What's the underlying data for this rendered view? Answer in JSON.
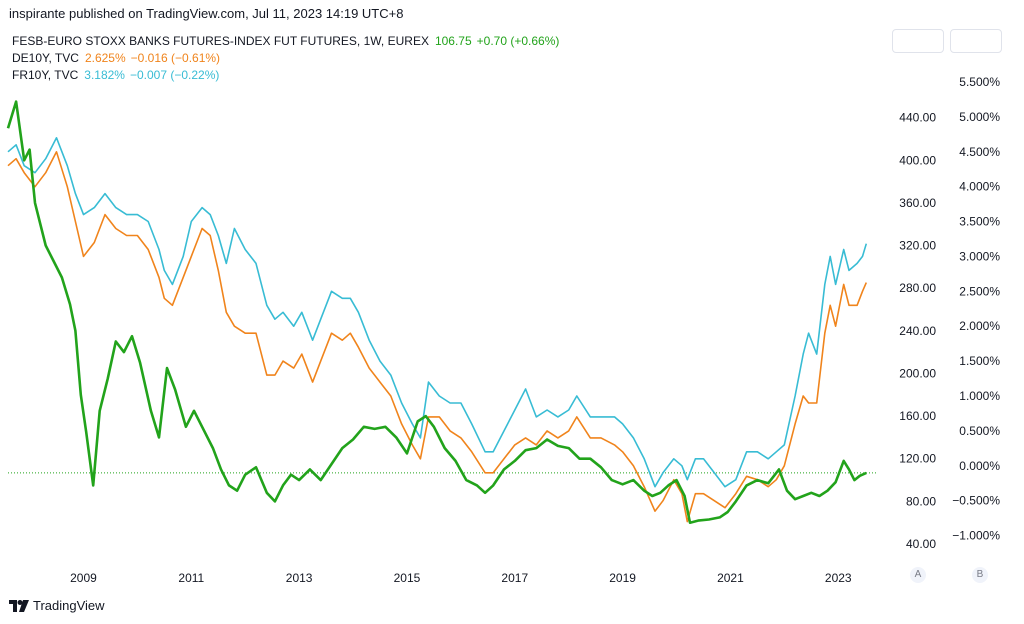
{
  "header": {
    "published_text": "inspirante published on TradingView.com, Jul 11, 2023 14:19 UTC+8"
  },
  "legend": [
    {
      "symbol": "FESB-EURO STOXX BANKS FUTURES-INDEX FUT FUTURES, 1W, EUREX",
      "price": "106.75",
      "change": "+0.70 (+0.66%)",
      "color": "#22a31b"
    },
    {
      "symbol": "DE10Y, TVC",
      "price": "2.625%",
      "change": "−0.016 (−0.61%)",
      "color": "#f0841c"
    },
    {
      "symbol": "FR10Y, TVC",
      "price": "3.182%",
      "change": "−0.007 (−0.22%)",
      "color": "#38bcd4"
    }
  ],
  "footer": {
    "brand": "TradingView"
  },
  "scale_buttons": {
    "a": "A",
    "b": "B"
  },
  "chart_data": {
    "type": "line",
    "x_labels": [
      "2009",
      "2011",
      "2013",
      "2015",
      "2017",
      "2019",
      "2021",
      "2023"
    ],
    "x_range": [
      2007.6,
      2023.7
    ],
    "y_left": {
      "ticks": [
        "440.00",
        "400.00",
        "360.00",
        "320.00",
        "280.00",
        "240.00",
        "200.00",
        "160.00",
        "120.00",
        "80.00",
        "40.00"
      ],
      "range": [
        25,
        480
      ]
    },
    "y_right": {
      "ticks": [
        "5.000%",
        "4.500%",
        "4.000%",
        "3.500%",
        "3.000%",
        "2.500%",
        "2.000%",
        "1.500%",
        "1.000%",
        "0.500%",
        "0.000%",
        "−0.500%",
        "−1.000%"
      ],
      "partial_top": "5.500%",
      "range": [
        -1.35,
        5.6
      ]
    },
    "reference_line": {
      "value": 106.75,
      "axis": "left",
      "color": "#22a31b"
    },
    "grid": false,
    "series": [
      {
        "name": "FESB-EURO STOXX BANKS FUTURES-INDEX FUT FUTURES, 1W, EUREX",
        "axis": "left",
        "color": "#22a31b",
        "points": [
          [
            2007.6,
            430
          ],
          [
            2007.75,
            455
          ],
          [
            2007.9,
            400
          ],
          [
            2008.0,
            410
          ],
          [
            2008.1,
            360
          ],
          [
            2008.3,
            320
          ],
          [
            2008.45,
            305
          ],
          [
            2008.6,
            290
          ],
          [
            2008.75,
            265
          ],
          [
            2008.85,
            240
          ],
          [
            2008.95,
            180
          ],
          [
            2009.05,
            145
          ],
          [
            2009.18,
            95
          ],
          [
            2009.3,
            165
          ],
          [
            2009.45,
            195
          ],
          [
            2009.6,
            230
          ],
          [
            2009.75,
            220
          ],
          [
            2009.9,
            235
          ],
          [
            2010.05,
            210
          ],
          [
            2010.25,
            165
          ],
          [
            2010.4,
            140
          ],
          [
            2010.55,
            205
          ],
          [
            2010.7,
            185
          ],
          [
            2010.9,
            150
          ],
          [
            2011.05,
            165
          ],
          [
            2011.2,
            150
          ],
          [
            2011.4,
            130
          ],
          [
            2011.55,
            110
          ],
          [
            2011.7,
            95
          ],
          [
            2011.85,
            90
          ],
          [
            2012.0,
            105
          ],
          [
            2012.2,
            112
          ],
          [
            2012.4,
            88
          ],
          [
            2012.55,
            80
          ],
          [
            2012.7,
            95
          ],
          [
            2012.85,
            105
          ],
          [
            2013.0,
            100
          ],
          [
            2013.2,
            110
          ],
          [
            2013.4,
            100
          ],
          [
            2013.6,
            115
          ],
          [
            2013.8,
            130
          ],
          [
            2014.0,
            138
          ],
          [
            2014.2,
            150
          ],
          [
            2014.4,
            148
          ],
          [
            2014.6,
            150
          ],
          [
            2014.8,
            140
          ],
          [
            2015.0,
            125
          ],
          [
            2015.2,
            155
          ],
          [
            2015.35,
            160
          ],
          [
            2015.5,
            150
          ],
          [
            2015.7,
            130
          ],
          [
            2015.9,
            118
          ],
          [
            2016.1,
            100
          ],
          [
            2016.3,
            95
          ],
          [
            2016.45,
            88
          ],
          [
            2016.6,
            95
          ],
          [
            2016.8,
            110
          ],
          [
            2017.0,
            118
          ],
          [
            2017.2,
            128
          ],
          [
            2017.4,
            130
          ],
          [
            2017.6,
            138
          ],
          [
            2017.8,
            132
          ],
          [
            2018.0,
            130
          ],
          [
            2018.2,
            120
          ],
          [
            2018.4,
            120
          ],
          [
            2018.6,
            112
          ],
          [
            2018.8,
            100
          ],
          [
            2019.0,
            96
          ],
          [
            2019.2,
            100
          ],
          [
            2019.4,
            90
          ],
          [
            2019.55,
            85
          ],
          [
            2019.7,
            88
          ],
          [
            2019.85,
            95
          ],
          [
            2020.0,
            100
          ],
          [
            2020.15,
            85
          ],
          [
            2020.25,
            60
          ],
          [
            2020.4,
            62
          ],
          [
            2020.6,
            63
          ],
          [
            2020.8,
            65
          ],
          [
            2020.95,
            70
          ],
          [
            2021.1,
            80
          ],
          [
            2021.3,
            95
          ],
          [
            2021.5,
            100
          ],
          [
            2021.7,
            97
          ],
          [
            2021.9,
            110
          ],
          [
            2022.05,
            90
          ],
          [
            2022.2,
            82
          ],
          [
            2022.35,
            85
          ],
          [
            2022.5,
            88
          ],
          [
            2022.65,
            85
          ],
          [
            2022.8,
            90
          ],
          [
            2022.95,
            98
          ],
          [
            2023.1,
            118
          ],
          [
            2023.2,
            110
          ],
          [
            2023.3,
            100
          ],
          [
            2023.4,
            104
          ],
          [
            2023.52,
            106.75
          ]
        ]
      },
      {
        "name": "DE10Y, TVC",
        "axis": "right",
        "color": "#f0841c",
        "points": [
          [
            2007.6,
            4.3
          ],
          [
            2007.75,
            4.4
          ],
          [
            2007.9,
            4.2
          ],
          [
            2008.1,
            4.0
          ],
          [
            2008.3,
            4.2
          ],
          [
            2008.5,
            4.5
          ],
          [
            2008.7,
            4.0
          ],
          [
            2008.85,
            3.5
          ],
          [
            2009.0,
            3.0
          ],
          [
            2009.2,
            3.2
          ],
          [
            2009.4,
            3.6
          ],
          [
            2009.6,
            3.4
          ],
          [
            2009.8,
            3.3
          ],
          [
            2010.0,
            3.3
          ],
          [
            2010.2,
            3.1
          ],
          [
            2010.4,
            2.7
          ],
          [
            2010.5,
            2.4
          ],
          [
            2010.65,
            2.3
          ],
          [
            2010.85,
            2.7
          ],
          [
            2011.0,
            3.0
          ],
          [
            2011.2,
            3.4
          ],
          [
            2011.35,
            3.3
          ],
          [
            2011.5,
            2.8
          ],
          [
            2011.65,
            2.2
          ],
          [
            2011.8,
            2.0
          ],
          [
            2012.0,
            1.9
          ],
          [
            2012.2,
            1.9
          ],
          [
            2012.4,
            1.3
          ],
          [
            2012.55,
            1.3
          ],
          [
            2012.7,
            1.5
          ],
          [
            2012.9,
            1.4
          ],
          [
            2013.05,
            1.6
          ],
          [
            2013.25,
            1.2
          ],
          [
            2013.4,
            1.5
          ],
          [
            2013.6,
            1.9
          ],
          [
            2013.8,
            1.8
          ],
          [
            2013.95,
            1.9
          ],
          [
            2014.1,
            1.7
          ],
          [
            2014.3,
            1.4
          ],
          [
            2014.5,
            1.2
          ],
          [
            2014.7,
            1.0
          ],
          [
            2014.9,
            0.6
          ],
          [
            2015.1,
            0.3
          ],
          [
            2015.25,
            0.1
          ],
          [
            2015.4,
            0.7
          ],
          [
            2015.6,
            0.7
          ],
          [
            2015.8,
            0.5
          ],
          [
            2016.0,
            0.4
          ],
          [
            2016.2,
            0.2
          ],
          [
            2016.45,
            -0.1
          ],
          [
            2016.6,
            -0.1
          ],
          [
            2016.8,
            0.1
          ],
          [
            2017.0,
            0.3
          ],
          [
            2017.2,
            0.4
          ],
          [
            2017.4,
            0.3
          ],
          [
            2017.6,
            0.5
          ],
          [
            2017.8,
            0.4
          ],
          [
            2018.0,
            0.5
          ],
          [
            2018.15,
            0.7
          ],
          [
            2018.4,
            0.4
          ],
          [
            2018.6,
            0.4
          ],
          [
            2018.85,
            0.3
          ],
          [
            2019.0,
            0.2
          ],
          [
            2019.2,
            0.0
          ],
          [
            2019.4,
            -0.3
          ],
          [
            2019.6,
            -0.65
          ],
          [
            2019.75,
            -0.5
          ],
          [
            2019.95,
            -0.2
          ],
          [
            2020.1,
            -0.4
          ],
          [
            2020.2,
            -0.8
          ],
          [
            2020.35,
            -0.4
          ],
          [
            2020.5,
            -0.4
          ],
          [
            2020.7,
            -0.5
          ],
          [
            2020.9,
            -0.6
          ],
          [
            2021.1,
            -0.4
          ],
          [
            2021.3,
            -0.15
          ],
          [
            2021.5,
            -0.2
          ],
          [
            2021.7,
            -0.3
          ],
          [
            2021.85,
            -0.2
          ],
          [
            2022.0,
            0.0
          ],
          [
            2022.2,
            0.6
          ],
          [
            2022.35,
            1.0
          ],
          [
            2022.45,
            0.9
          ],
          [
            2022.6,
            0.9
          ],
          [
            2022.75,
            1.9
          ],
          [
            2022.85,
            2.3
          ],
          [
            2022.95,
            2.0
          ],
          [
            2023.1,
            2.6
          ],
          [
            2023.2,
            2.3
          ],
          [
            2023.35,
            2.3
          ],
          [
            2023.45,
            2.5
          ],
          [
            2023.52,
            2.625
          ]
        ]
      },
      {
        "name": "FR10Y, TVC",
        "axis": "right",
        "color": "#38bcd4",
        "points": [
          [
            2007.6,
            4.5
          ],
          [
            2007.75,
            4.6
          ],
          [
            2007.9,
            4.3
          ],
          [
            2008.1,
            4.2
          ],
          [
            2008.3,
            4.4
          ],
          [
            2008.5,
            4.7
          ],
          [
            2008.7,
            4.3
          ],
          [
            2008.85,
            3.9
          ],
          [
            2009.0,
            3.6
          ],
          [
            2009.2,
            3.7
          ],
          [
            2009.4,
            3.9
          ],
          [
            2009.6,
            3.7
          ],
          [
            2009.8,
            3.6
          ],
          [
            2010.0,
            3.6
          ],
          [
            2010.2,
            3.5
          ],
          [
            2010.4,
            3.1
          ],
          [
            2010.5,
            2.8
          ],
          [
            2010.65,
            2.6
          ],
          [
            2010.85,
            3.0
          ],
          [
            2011.0,
            3.5
          ],
          [
            2011.2,
            3.7
          ],
          [
            2011.35,
            3.6
          ],
          [
            2011.5,
            3.3
          ],
          [
            2011.65,
            2.9
          ],
          [
            2011.8,
            3.4
          ],
          [
            2012.0,
            3.1
          ],
          [
            2012.2,
            2.9
          ],
          [
            2012.4,
            2.3
          ],
          [
            2012.55,
            2.1
          ],
          [
            2012.7,
            2.2
          ],
          [
            2012.9,
            2.0
          ],
          [
            2013.05,
            2.2
          ],
          [
            2013.25,
            1.8
          ],
          [
            2013.4,
            2.1
          ],
          [
            2013.6,
            2.5
          ],
          [
            2013.8,
            2.4
          ],
          [
            2013.95,
            2.4
          ],
          [
            2014.1,
            2.2
          ],
          [
            2014.3,
            1.8
          ],
          [
            2014.5,
            1.5
          ],
          [
            2014.7,
            1.3
          ],
          [
            2014.9,
            0.9
          ],
          [
            2015.1,
            0.6
          ],
          [
            2015.25,
            0.4
          ],
          [
            2015.4,
            1.2
          ],
          [
            2015.6,
            1.0
          ],
          [
            2015.8,
            0.9
          ],
          [
            2016.0,
            0.9
          ],
          [
            2016.2,
            0.6
          ],
          [
            2016.45,
            0.2
          ],
          [
            2016.6,
            0.2
          ],
          [
            2016.8,
            0.5
          ],
          [
            2017.0,
            0.8
          ],
          [
            2017.2,
            1.1
          ],
          [
            2017.4,
            0.7
          ],
          [
            2017.6,
            0.8
          ],
          [
            2017.8,
            0.7
          ],
          [
            2018.0,
            0.8
          ],
          [
            2018.15,
            1.0
          ],
          [
            2018.4,
            0.7
          ],
          [
            2018.6,
            0.7
          ],
          [
            2018.85,
            0.7
          ],
          [
            2019.0,
            0.6
          ],
          [
            2019.2,
            0.4
          ],
          [
            2019.4,
            0.1
          ],
          [
            2019.6,
            -0.3
          ],
          [
            2019.75,
            -0.1
          ],
          [
            2019.95,
            0.1
          ],
          [
            2020.1,
            0.0
          ],
          [
            2020.2,
            -0.2
          ],
          [
            2020.35,
            0.1
          ],
          [
            2020.5,
            0.1
          ],
          [
            2020.7,
            -0.1
          ],
          [
            2020.9,
            -0.3
          ],
          [
            2021.1,
            -0.2
          ],
          [
            2021.3,
            0.2
          ],
          [
            2021.5,
            0.2
          ],
          [
            2021.7,
            0.1
          ],
          [
            2021.85,
            0.2
          ],
          [
            2022.0,
            0.3
          ],
          [
            2022.2,
            1.0
          ],
          [
            2022.35,
            1.6
          ],
          [
            2022.45,
            1.9
          ],
          [
            2022.6,
            1.6
          ],
          [
            2022.75,
            2.6
          ],
          [
            2022.85,
            3.0
          ],
          [
            2022.95,
            2.6
          ],
          [
            2023.1,
            3.1
          ],
          [
            2023.2,
            2.8
          ],
          [
            2023.35,
            2.9
          ],
          [
            2023.45,
            3.0
          ],
          [
            2023.52,
            3.182
          ]
        ]
      }
    ]
  }
}
